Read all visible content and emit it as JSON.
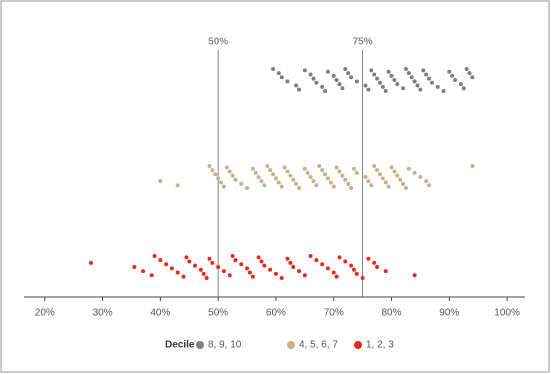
{
  "chart_data": {
    "type": "strip",
    "legend_title": "Decile",
    "xlim": [
      16.4,
      103.1
    ],
    "xticks": [
      {
        "value": 20,
        "label": "20%"
      },
      {
        "value": 30,
        "label": "30%"
      },
      {
        "value": 40,
        "label": "40%"
      },
      {
        "value": 50,
        "label": "50%"
      },
      {
        "value": 60,
        "label": "60%"
      },
      {
        "value": 70,
        "label": "70%"
      },
      {
        "value": 80,
        "label": "80%"
      },
      {
        "value": 90,
        "label": "90%"
      },
      {
        "value": 100,
        "label": "100%"
      }
    ],
    "reference_lines": [
      {
        "value": 50,
        "label": "50%"
      },
      {
        "value": 75,
        "label": "75%"
      }
    ],
    "series": [
      {
        "name": "8, 9, 10",
        "color": "#7f7f82",
        "values": [
          59.5,
          60.5,
          61,
          62,
          63.5,
          64,
          65,
          66,
          66.5,
          67,
          68,
          68.5,
          69,
          70,
          70.5,
          71,
          71.5,
          72,
          72.5,
          73,
          74,
          75.5,
          76,
          76.5,
          77,
          77.5,
          78,
          78.5,
          79,
          79.5,
          80,
          80.5,
          81,
          82,
          82.5,
          83,
          83.5,
          84,
          84.5,
          85,
          85.5,
          86,
          86.5,
          87,
          88,
          89,
          90,
          90.5,
          91,
          92,
          92.5,
          93,
          93.5,
          94
        ]
      },
      {
        "name": "4, 5, 6, 7",
        "color": "#c9b08b",
        "values": [
          40,
          43,
          48.5,
          49,
          49.5,
          50,
          50.5,
          51,
          51.5,
          52,
          52.5,
          53,
          54,
          55,
          56,
          56.5,
          57,
          57.5,
          58,
          58.5,
          59,
          59.5,
          60,
          60.5,
          61,
          61.5,
          62,
          62.5,
          63,
          63.5,
          64,
          65,
          65.5,
          66,
          66.5,
          67,
          67.5,
          68,
          68.5,
          69,
          69.5,
          70,
          70.5,
          71,
          71.5,
          72,
          72.5,
          73,
          73.5,
          74,
          75.5,
          76,
          76.5,
          77,
          77.5,
          78,
          78.5,
          79,
          79.5,
          80,
          80.5,
          81,
          81.5,
          82,
          82.5,
          83,
          84,
          85,
          86,
          86.5,
          94
        ]
      },
      {
        "name": "1, 2, 3",
        "color": "#e8291c",
        "values": [
          28,
          35.5,
          37,
          38.5,
          39,
          40,
          41,
          42,
          43,
          44,
          44.5,
          45,
          46,
          47,
          47.5,
          48,
          48.5,
          49,
          50,
          51,
          52,
          52.5,
          53,
          54,
          55,
          55.5,
          56,
          57,
          57.5,
          58,
          59,
          60,
          61,
          62,
          62.5,
          63,
          64,
          65,
          66,
          67,
          68,
          69,
          70,
          70.5,
          71,
          72,
          73,
          73.5,
          74,
          75,
          76,
          77,
          77.5,
          79,
          84
        ]
      }
    ]
  }
}
